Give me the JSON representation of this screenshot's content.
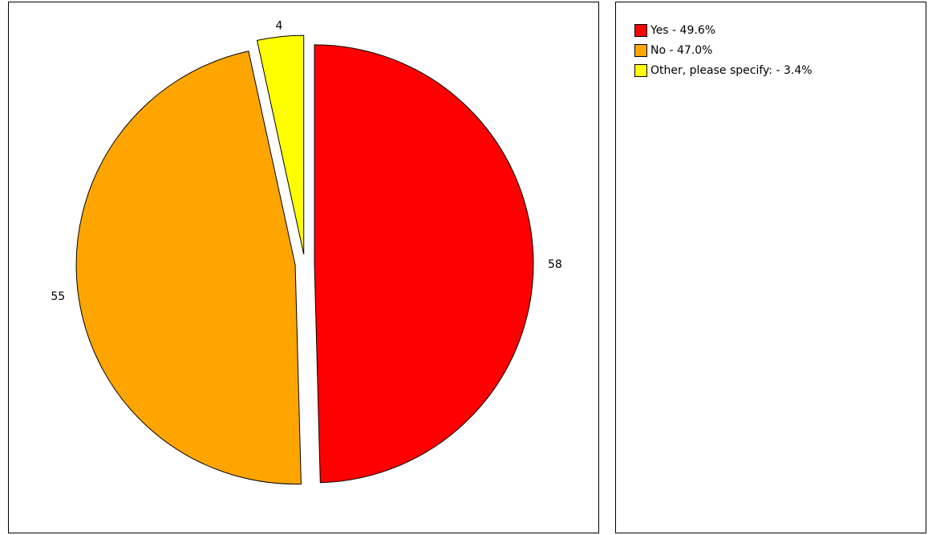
{
  "chart_data": {
    "type": "pie",
    "slices": [
      {
        "label": "Yes",
        "value": 58,
        "percent": "49.6%",
        "color": "#ff0000",
        "exploded": true
      },
      {
        "label": "No",
        "value": 55,
        "percent": "47.0%",
        "color": "#ffa500",
        "exploded": true
      },
      {
        "label": "Other, please specify: ",
        "value": 4,
        "percent": "3.4%",
        "color": "#ffff00",
        "exploded": true
      }
    ],
    "legend": {
      "placement": "right",
      "entries": [
        "Yes - 49.6%",
        "No - 47.0%",
        "Other, please specify:  - 3.4%"
      ]
    },
    "value_labels": [
      "58",
      "55",
      "4"
    ]
  }
}
